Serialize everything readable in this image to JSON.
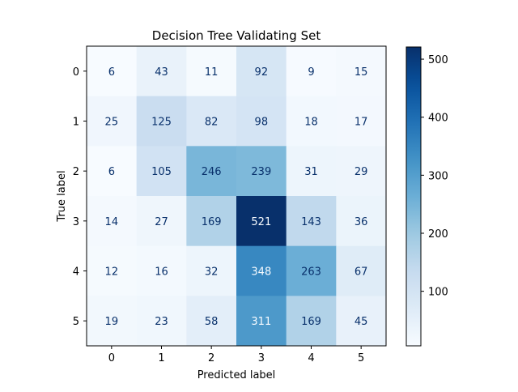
{
  "chart_data": {
    "type": "heatmap",
    "title": "Decision Tree Validating Set",
    "xlabel": "Predicted label",
    "ylabel": "True label",
    "x_categories": [
      "0",
      "1",
      "2",
      "3",
      "4",
      "5"
    ],
    "y_categories": [
      "0",
      "1",
      "2",
      "3",
      "4",
      "5"
    ],
    "values": [
      [
        6,
        43,
        11,
        92,
        9,
        15
      ],
      [
        25,
        125,
        82,
        98,
        18,
        17
      ],
      [
        6,
        105,
        246,
        239,
        31,
        29
      ],
      [
        14,
        27,
        169,
        521,
        143,
        36
      ],
      [
        12,
        16,
        32,
        348,
        263,
        67
      ],
      [
        19,
        23,
        58,
        311,
        169,
        45
      ]
    ],
    "colormap": "Blues",
    "vmin": 6,
    "vmax": 521,
    "colorbar_ticks": [
      100,
      200,
      300,
      400,
      500
    ]
  }
}
